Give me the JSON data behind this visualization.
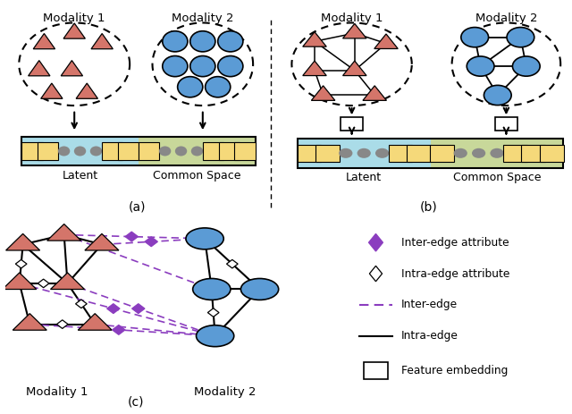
{
  "fig_width": 6.4,
  "fig_height": 4.63,
  "bg_color": "#ffffff",
  "triangle_color": "#d4756a",
  "circle_color": "#5b9bd5",
  "square_color": "#f5d97a",
  "latent_bg": "#aadce8",
  "common_bg": "#c8d89a",
  "inter_edge_color": "#8B3DBF",
  "intra_edge_color": "#000000",
  "modality1_label": "Modality 1",
  "modality2_label": "Modality 2",
  "latent_label": "Latent",
  "common_label": "Common Space",
  "sub_a": "(a)",
  "sub_b": "(b)",
  "sub_c": "(c)"
}
